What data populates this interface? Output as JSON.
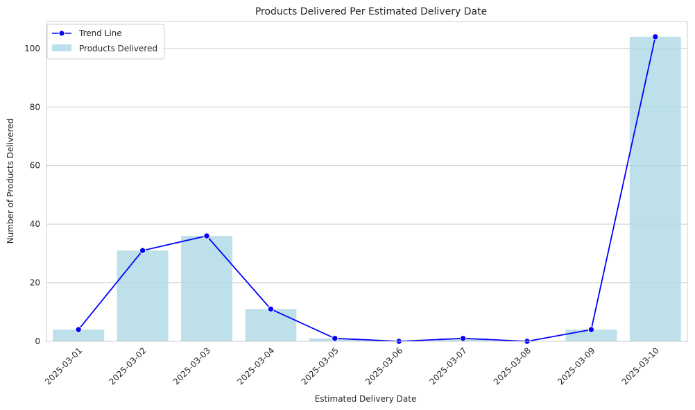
{
  "chart_data": {
    "type": "bar",
    "title": "Products Delivered Per Estimated Delivery Date",
    "xlabel": "Estimated Delivery Date",
    "ylabel": "Number of Products Delivered",
    "categories": [
      "2025-03-01",
      "2025-03-02",
      "2025-03-03",
      "2025-03-04",
      "2025-03-05",
      "2025-03-06",
      "2025-03-07",
      "2025-03-08",
      "2025-03-09",
      "2025-03-10"
    ],
    "series": [
      {
        "name": "Products Delivered",
        "kind": "bar",
        "color": "#add8e6",
        "values": [
          4,
          31,
          36,
          11,
          1,
          0,
          1,
          0,
          4,
          104
        ]
      },
      {
        "name": "Trend Line",
        "kind": "line",
        "color": "#0000ff",
        "marker": "circle",
        "values": [
          4,
          31,
          36,
          11,
          1,
          0,
          1,
          0,
          4,
          104
        ]
      }
    ],
    "yticks": [
      0,
      20,
      40,
      60,
      80,
      100
    ],
    "ylim": [
      0,
      109.2
    ],
    "grid": "horizontal",
    "legend_position": "top-left",
    "xtick_rotation": 45
  }
}
